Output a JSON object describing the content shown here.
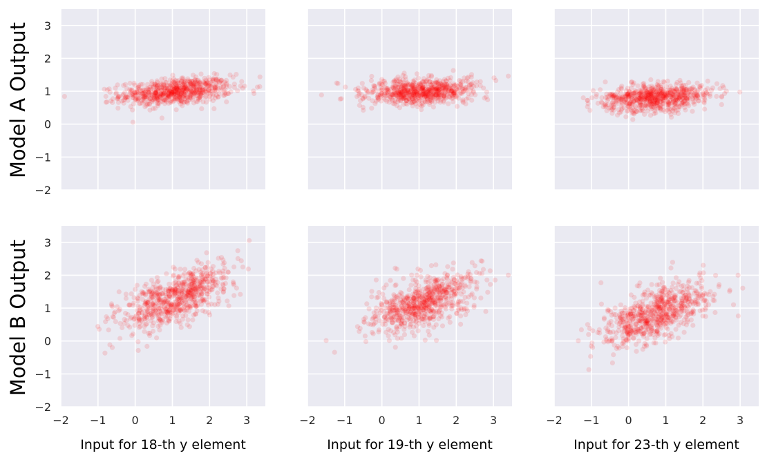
{
  "row_labels": [
    "Model  A  Output",
    "Model  B  Output"
  ],
  "panel_xlabels": [
    "Input for 18-th y element",
    "Input for 19-th y element",
    "Input for 23-th y element"
  ],
  "style": {
    "background": "#eaeaf2",
    "grid": "#ffffff",
    "point": "#ff0000",
    "point_alpha": 0.12
  },
  "chart_data": [
    {
      "type": "scatter",
      "row": "Model A",
      "xlabel": "Input for 18-th y element",
      "xlim": [
        -2,
        3.5
      ],
      "ylim": [
        -2,
        3.5
      ],
      "xticks": [
        -2,
        -1,
        0,
        1,
        2,
        3
      ],
      "yticks": [
        -2,
        -1,
        0,
        1,
        2,
        3
      ],
      "grid": true,
      "n_points": 700,
      "x_dist": {
        "mean": 1.1,
        "sd": 0.75,
        "min": -1.9,
        "max": 3.5
      },
      "y_model": {
        "intercept": 0.9,
        "slope": 0.08,
        "noise_sd": 0.2
      }
    },
    {
      "type": "scatter",
      "row": "Model A",
      "xlabel": "Input for 19-th y element",
      "xlim": [
        -2,
        3.5
      ],
      "ylim": [
        -2,
        3.5
      ],
      "xticks": [
        -2,
        -1,
        0,
        1,
        2,
        3
      ],
      "yticks": [
        -2,
        -1,
        0,
        1,
        2,
        3
      ],
      "grid": true,
      "n_points": 700,
      "x_dist": {
        "mean": 1.1,
        "sd": 0.75,
        "min": -2.0,
        "max": 3.4
      },
      "y_model": {
        "intercept": 0.95,
        "slope": 0.05,
        "noise_sd": 0.2
      }
    },
    {
      "type": "scatter",
      "row": "Model A",
      "xlabel": "Input for 23-th y element",
      "xlim": [
        -2,
        3.5
      ],
      "ylim": [
        -2,
        3.5
      ],
      "xticks": [
        -2,
        -1,
        0,
        1,
        2,
        3
      ],
      "yticks": [
        -2,
        -1,
        0,
        1,
        2,
        3
      ],
      "grid": true,
      "n_points": 700,
      "x_dist": {
        "mean": 0.7,
        "sd": 0.75,
        "min": -2.0,
        "max": 3.5
      },
      "y_model": {
        "intercept": 0.75,
        "slope": 0.07,
        "noise_sd": 0.22
      }
    },
    {
      "type": "scatter",
      "row": "Model B",
      "xlabel": "Input for 18-th y element",
      "xlim": [
        -2,
        3.5
      ],
      "ylim": [
        -2,
        3.5
      ],
      "xticks": [
        -2,
        -1,
        0,
        1,
        2,
        3
      ],
      "yticks": [
        -2,
        -1,
        0,
        1,
        2,
        3
      ],
      "grid": true,
      "n_points": 700,
      "x_dist": {
        "mean": 1.1,
        "sd": 0.75,
        "min": -1.9,
        "max": 3.5
      },
      "y_model": {
        "intercept": 0.85,
        "slope": 0.42,
        "noise_sd": 0.38
      }
    },
    {
      "type": "scatter",
      "row": "Model B",
      "xlabel": "Input for 19-th y element",
      "xlim": [
        -2,
        3.5
      ],
      "ylim": [
        -2,
        3.5
      ],
      "xticks": [
        -2,
        -1,
        0,
        1,
        2,
        3
      ],
      "yticks": [
        -2,
        -1,
        0,
        1,
        2,
        3
      ],
      "grid": true,
      "n_points": 700,
      "x_dist": {
        "mean": 1.1,
        "sd": 0.75,
        "min": -2.0,
        "max": 3.4
      },
      "y_model": {
        "intercept": 0.75,
        "slope": 0.38,
        "noise_sd": 0.38
      }
    },
    {
      "type": "scatter",
      "row": "Model B",
      "xlabel": "Input for 23-th y element",
      "xlim": [
        -2,
        3.5
      ],
      "ylim": [
        -2,
        3.5
      ],
      "xticks": [
        -2,
        -1,
        0,
        1,
        2,
        3
      ],
      "yticks": [
        -2,
        -1,
        0,
        1,
        2,
        3
      ],
      "grid": true,
      "n_points": 700,
      "x_dist": {
        "mean": 0.7,
        "sd": 0.75,
        "min": -2.0,
        "max": 3.5
      },
      "y_model": {
        "intercept": 0.55,
        "slope": 0.42,
        "noise_sd": 0.38
      }
    }
  ]
}
